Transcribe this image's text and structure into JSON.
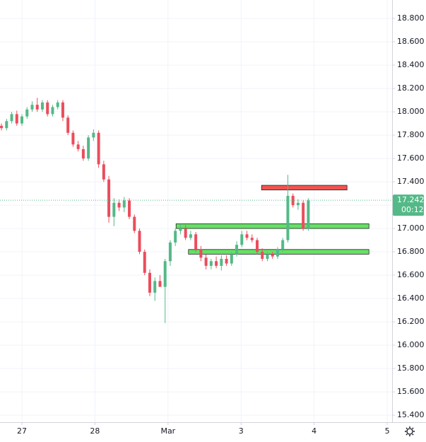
{
  "chart_data": {
    "type": "candlestick",
    "up_color": "#53b987",
    "down_color": "#eb4d5c",
    "grid": true,
    "xlim": [
      -0.3,
      5.067
    ],
    "ylim": [
      15.34,
      18.958
    ],
    "xticks": [
      {
        "value": 0,
        "label": "27"
      },
      {
        "value": 1,
        "label": "28"
      },
      {
        "value": 2,
        "label": "Mar"
      },
      {
        "value": 3,
        "label": "3"
      },
      {
        "value": 4,
        "label": "4"
      },
      {
        "value": 5,
        "label": "5"
      }
    ],
    "yticks": [
      {
        "value": 15.4,
        "label": "15.400"
      },
      {
        "value": 15.6,
        "label": "15.600"
      },
      {
        "value": 15.8,
        "label": "15.800"
      },
      {
        "value": 16.0,
        "label": "16.000"
      },
      {
        "value": 16.2,
        "label": "16.200"
      },
      {
        "value": 16.4,
        "label": "16.400"
      },
      {
        "value": 16.6,
        "label": "16.600"
      },
      {
        "value": 16.8,
        "label": "16.800"
      },
      {
        "value": 17.0,
        "label": "17.000"
      },
      {
        "value": 17.2,
        "label": "17.200"
      },
      {
        "value": 17.4,
        "label": "17.400"
      },
      {
        "value": 17.6,
        "label": "17.600"
      },
      {
        "value": 17.8,
        "label": "17.800"
      },
      {
        "value": 18.0,
        "label": "18.000"
      },
      {
        "value": 18.2,
        "label": "18.200"
      },
      {
        "value": 18.4,
        "label": "18.400"
      },
      {
        "value": 18.6,
        "label": "18.600"
      },
      {
        "value": 18.8,
        "label": "18.800"
      }
    ],
    "x": [
      -0.28,
      -0.21,
      -0.14,
      -0.07,
      0,
      0.07,
      0.14,
      0.21,
      0.28,
      0.35,
      0.42,
      0.49,
      0.56,
      0.63,
      0.7,
      0.77,
      0.84,
      0.91,
      0.98,
      1.05,
      1.12,
      1.19,
      1.26,
      1.33,
      1.4,
      1.47,
      1.54,
      1.61,
      1.68,
      1.75,
      1.82,
      1.89,
      1.96,
      2.03,
      2.1,
      2.17,
      2.24,
      2.31,
      2.38,
      2.45,
      2.52,
      2.59,
      2.66,
      2.73,
      2.8,
      2.87,
      2.94,
      3.01,
      3.08,
      3.15,
      3.22,
      3.29,
      3.36,
      3.43,
      3.5,
      3.57,
      3.64,
      3.71,
      3.78,
      3.85,
      3.92
    ],
    "open": [
      17.88,
      17.86,
      17.92,
      17.98,
      17.9,
      17.96,
      18.02,
      18.06,
      18.02,
      18.08,
      17.98,
      18.04,
      18.08,
      17.95,
      17.82,
      17.72,
      17.68,
      17.6,
      17.78,
      17.82,
      17.55,
      17.42,
      17.1,
      17.22,
      17.18,
      17.24,
      17.1,
      16.98,
      16.8,
      16.62,
      16.45,
      16.55,
      16.5,
      16.72,
      16.88,
      16.98,
      17.0,
      16.92,
      16.95,
      16.82,
      16.75,
      16.68,
      16.72,
      16.68,
      16.74,
      16.7,
      16.78,
      16.86,
      16.95,
      16.92,
      16.9,
      16.8,
      16.74,
      16.78,
      16.76,
      16.82,
      16.9,
      17.28,
      17.2,
      17.22,
      17.0
    ],
    "high": [
      17.9,
      17.94,
      18.0,
      18.01,
      17.98,
      18.04,
      18.09,
      18.12,
      18.1,
      18.1,
      18.06,
      18.1,
      18.1,
      17.97,
      17.84,
      17.75,
      17.71,
      17.8,
      17.85,
      17.84,
      17.58,
      17.45,
      17.26,
      17.25,
      17.27,
      17.26,
      17.12,
      17.0,
      16.82,
      16.65,
      16.58,
      16.6,
      16.74,
      16.9,
      17.0,
      17.04,
      17.03,
      16.98,
      16.97,
      16.85,
      16.78,
      16.74,
      16.76,
      16.77,
      16.77,
      16.8,
      16.89,
      16.98,
      16.98,
      16.95,
      16.92,
      16.83,
      16.8,
      16.8,
      16.84,
      16.92,
      17.46,
      17.3,
      17.25,
      17.24,
      17.26
    ],
    "low": [
      17.84,
      17.84,
      17.9,
      17.88,
      17.88,
      17.94,
      18.0,
      18.0,
      18.0,
      17.96,
      17.96,
      18.02,
      17.92,
      17.8,
      17.7,
      17.66,
      17.58,
      17.58,
      17.75,
      17.52,
      17.4,
      17.05,
      17.02,
      17.15,
      17.14,
      17.08,
      16.96,
      16.78,
      16.6,
      16.42,
      16.38,
      16.5,
      16.19,
      16.68,
      16.85,
      16.95,
      16.9,
      16.9,
      16.8,
      16.72,
      16.65,
      16.65,
      16.66,
      16.64,
      16.68,
      16.68,
      16.76,
      16.84,
      16.9,
      16.88,
      16.78,
      16.72,
      16.72,
      16.74,
      16.74,
      16.8,
      16.88,
      17.18,
      17.16,
      16.98,
      16.98
    ],
    "close": [
      17.86,
      17.92,
      17.98,
      17.9,
      17.96,
      18.02,
      18.06,
      18.02,
      18.08,
      17.98,
      18.04,
      18.08,
      17.95,
      17.82,
      17.72,
      17.68,
      17.6,
      17.78,
      17.82,
      17.55,
      17.42,
      17.1,
      17.22,
      17.18,
      17.24,
      17.1,
      16.98,
      16.8,
      16.62,
      16.45,
      16.55,
      16.5,
      16.72,
      16.88,
      16.98,
      17.0,
      16.92,
      16.95,
      16.82,
      16.75,
      16.68,
      16.72,
      16.68,
      16.74,
      16.7,
      16.78,
      16.86,
      16.95,
      16.92,
      16.9,
      16.8,
      16.74,
      16.78,
      16.76,
      16.82,
      16.9,
      17.28,
      17.2,
      17.22,
      17.0,
      17.24
    ],
    "zones": [
      {
        "color": "#ef5350",
        "x": [
          3.28,
          4.45
        ],
        "y": [
          17.33,
          17.37
        ]
      },
      {
        "color": "#66e066",
        "x": [
          2.11,
          4.75
        ],
        "y": [
          17.0,
          17.04
        ]
      },
      {
        "color": "#66e066",
        "x": [
          2.28,
          4.75
        ],
        "y": [
          16.78,
          16.82
        ]
      }
    ],
    "last_price": 17.242,
    "countdown": "00:12"
  }
}
